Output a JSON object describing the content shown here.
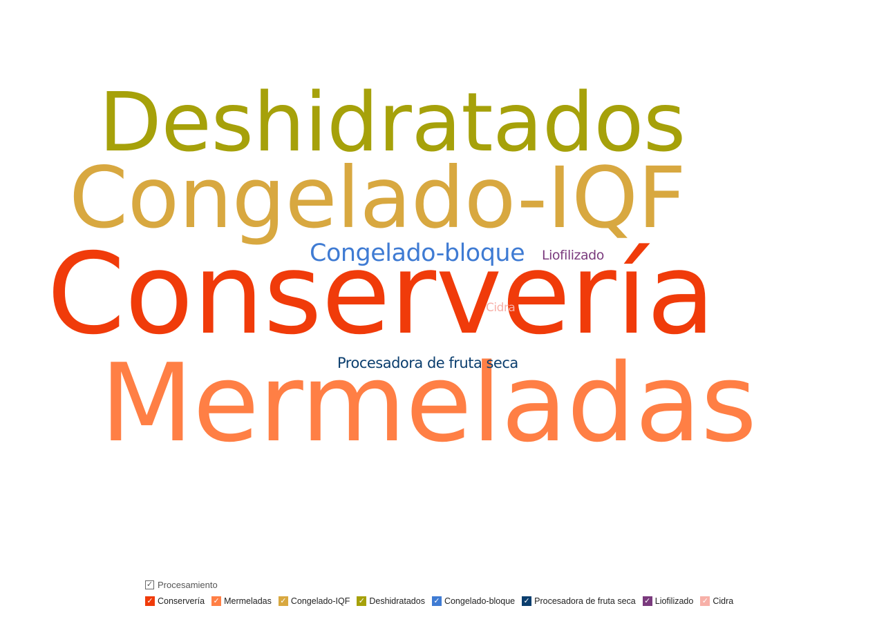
{
  "chart_data": {
    "type": "wordcloud",
    "legend": {
      "title": "Procesamiento",
      "placement": "bottom-left"
    },
    "words": [
      {
        "text": "Conservería",
        "weight": 100,
        "color": "#f03b0a"
      },
      {
        "text": "Mermeladas",
        "weight": 82,
        "color": "#ff7f45"
      },
      {
        "text": "Congelado-IQF",
        "weight": 70,
        "color": "#d8a840"
      },
      {
        "text": "Deshidratados",
        "weight": 62,
        "color": "#a6a10a"
      },
      {
        "text": "Congelado-bloque",
        "weight": 20,
        "color": "#3f7bd3"
      },
      {
        "text": "Procesadora de fruta seca",
        "weight": 13,
        "color": "#0b3e6e"
      },
      {
        "text": "Liofilizado",
        "weight": 12,
        "color": "#7a3a7d"
      },
      {
        "text": "Cidra",
        "weight": 11,
        "color": "#f7b0a8"
      }
    ]
  }
}
